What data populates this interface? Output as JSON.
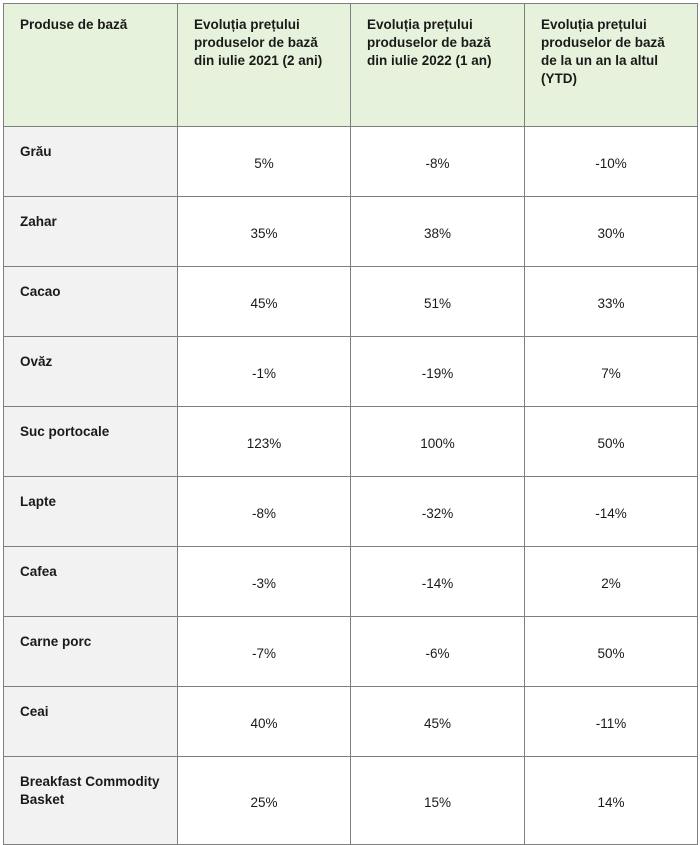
{
  "table": {
    "header": [
      "Produse de bază",
      "Evoluția prețului produselor de bază din iulie 2021 (2 ani)",
      "Evoluția prețului produselor de bază din iulie 2022 (1 an)",
      "Evoluția prețului produselor de bază de la un an la altul (YTD)"
    ],
    "rows": [
      [
        "Grău",
        "5%",
        "-8%",
        "-10%"
      ],
      [
        "Zahar",
        "35%",
        "38%",
        "30%"
      ],
      [
        "Cacao",
        "45%",
        "51%",
        "33%"
      ],
      [
        "Ovăz",
        "-1%",
        "-19%",
        "7%"
      ],
      [
        "Suc portocale",
        "123%",
        "100%",
        "50%"
      ],
      [
        "Lapte",
        "-8%",
        "-32%",
        "-14%"
      ],
      [
        "Cafea",
        "-3%",
        "-14%",
        "2%"
      ],
      [
        "Carne porc",
        "-7%",
        "-6%",
        "50%"
      ],
      [
        "Ceai",
        "40%",
        "45%",
        "-11%"
      ],
      [
        "Breakfast Commodity Basket",
        "25%",
        "15%",
        "14%"
      ]
    ]
  }
}
